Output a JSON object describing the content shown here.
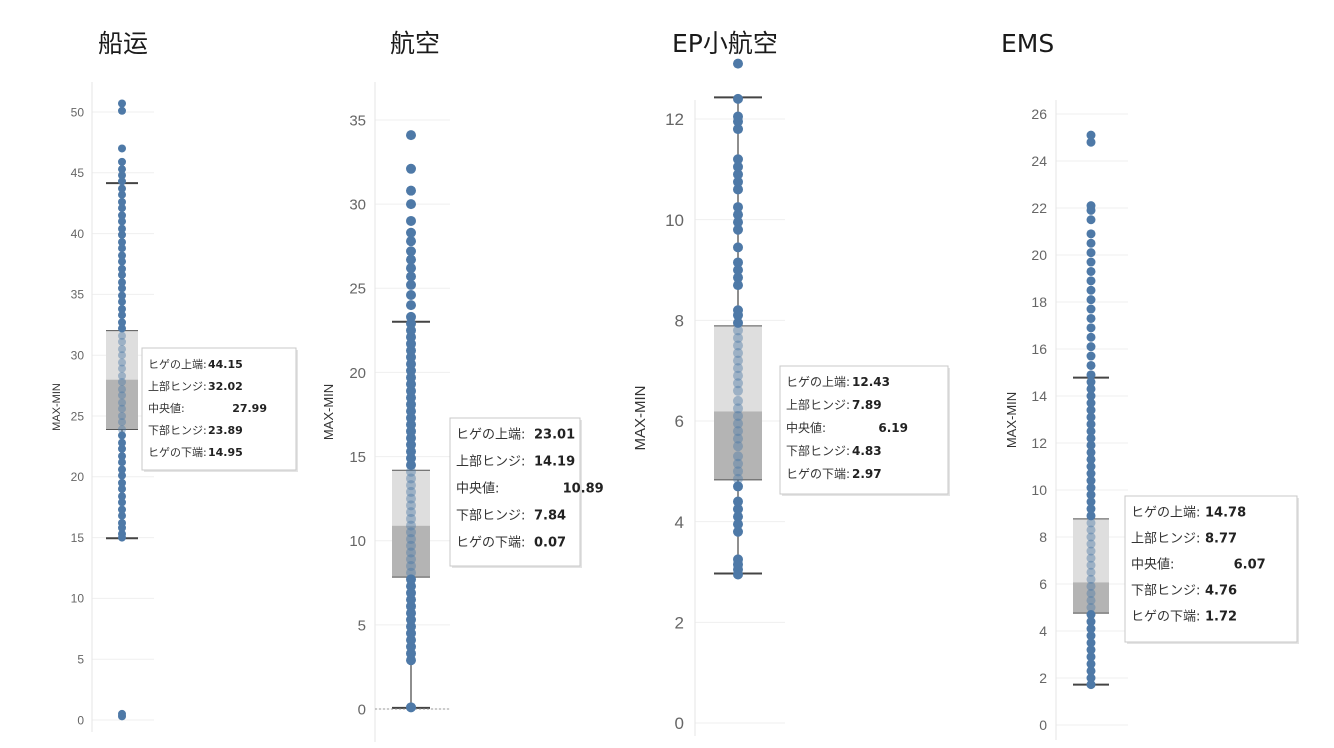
{
  "chart_data": [
    {
      "type": "boxplot",
      "title": "船运",
      "ylabel": "MAX-MIN",
      "ylim": [
        0,
        51
      ],
      "yticks": [
        0,
        5,
        10,
        15,
        20,
        25,
        30,
        35,
        40,
        45,
        50
      ],
      "whisker_upper": 44.15,
      "upper_hinge": 32.02,
      "median": 27.99,
      "lower_hinge": 23.89,
      "whisker_lower": 14.95,
      "points": [
        0.3,
        0.5,
        15.0,
        15.3,
        15.8,
        16.2,
        16.8,
        17.3,
        17.9,
        18.4,
        19.0,
        19.5,
        20.1,
        20.6,
        21.2,
        21.7,
        22.3,
        22.8,
        23.4,
        23.9,
        24.5,
        25.0,
        25.6,
        26.1,
        26.7,
        27.2,
        27.8,
        28.3,
        28.9,
        29.4,
        30.0,
        30.5,
        31.1,
        31.6,
        32.2,
        32.7,
        33.3,
        33.8,
        34.4,
        34.9,
        35.5,
        36.0,
        36.6,
        37.1,
        37.7,
        38.2,
        38.8,
        39.3,
        39.9,
        40.4,
        41.0,
        41.5,
        42.1,
        42.6,
        43.2,
        43.7,
        44.3,
        44.8,
        45.3,
        45.9,
        47.0,
        50.1,
        50.7
      ],
      "tooltip": {
        "labels": [
          "ヒゲの上端:",
          "上部ヒンジ:",
          "中央値:",
          "下部ヒンジ:",
          "ヒゲの下端:"
        ],
        "values": [
          "44.15",
          "32.02",
          "27.99",
          "23.89",
          "14.95"
        ]
      }
    },
    {
      "type": "boxplot",
      "title": "航空",
      "ylabel": "MAX-MIN",
      "ylim": [
        0,
        35
      ],
      "yticks": [
        0,
        5,
        10,
        15,
        20,
        25,
        30,
        35
      ],
      "whisker_upper": 23.01,
      "upper_hinge": 14.19,
      "median": 10.89,
      "lower_hinge": 7.84,
      "whisker_lower": 0.07,
      "points": [
        0.1,
        2.9,
        3.3,
        3.7,
        4.1,
        4.5,
        4.9,
        5.3,
        5.7,
        6.1,
        6.5,
        6.9,
        7.3,
        7.7,
        8.1,
        8.5,
        8.9,
        9.3,
        9.7,
        10.1,
        10.5,
        10.9,
        11.3,
        11.7,
        12.1,
        12.5,
        12.9,
        13.3,
        13.7,
        14.1,
        14.5,
        14.9,
        15.3,
        15.7,
        16.1,
        16.5,
        16.9,
        17.3,
        17.7,
        18.1,
        18.5,
        18.9,
        19.3,
        19.7,
        20.1,
        20.5,
        20.9,
        21.3,
        21.7,
        22.1,
        22.5,
        22.9,
        23.3,
        24.0,
        24.6,
        25.2,
        25.7,
        26.2,
        26.7,
        27.2,
        27.8,
        28.3,
        29.0,
        30.0,
        30.8,
        32.1,
        34.1
      ],
      "tooltip": {
        "labels": [
          "ヒゲの上端:",
          "上部ヒンジ:",
          "中央値:",
          "下部ヒンジ:",
          "ヒゲの下端:"
        ],
        "values": [
          "23.01",
          "14.19",
          "10.89",
          "7.84",
          "0.07"
        ]
      }
    },
    {
      "type": "boxplot",
      "title": "EP小航空",
      "ylabel": "MAX-MIN",
      "ylim": [
        0,
        13.3
      ],
      "yticks": [
        0,
        2,
        4,
        6,
        8,
        10,
        12
      ],
      "whisker_upper": 12.43,
      "upper_hinge": 7.89,
      "median": 6.19,
      "lower_hinge": 4.83,
      "whisker_lower": 2.97,
      "points": [
        2.95,
        3.05,
        3.15,
        3.25,
        3.8,
        3.95,
        4.1,
        4.25,
        4.4,
        4.7,
        4.85,
        5.0,
        5.15,
        5.3,
        5.5,
        5.65,
        5.8,
        5.95,
        6.1,
        6.25,
        6.4,
        6.6,
        6.75,
        6.9,
        7.05,
        7.2,
        7.35,
        7.5,
        7.65,
        7.8,
        7.95,
        8.1,
        8.2,
        8.7,
        8.85,
        9.0,
        9.15,
        9.45,
        9.8,
        9.95,
        10.1,
        10.25,
        10.6,
        10.75,
        10.9,
        11.05,
        11.2,
        11.8,
        11.95,
        12.05,
        12.4,
        13.1
      ],
      "tooltip": {
        "labels": [
          "ヒゲの上端:",
          "上部ヒンジ:",
          "中央値:",
          "下部ヒンジ:",
          "ヒゲの下端:"
        ],
        "values": [
          "12.43",
          "7.89",
          "6.19",
          "4.83",
          "2.97"
        ]
      }
    },
    {
      "type": "boxplot",
      "title": "EMS",
      "ylabel": "MAX-MIN",
      "ylim": [
        0,
        26
      ],
      "yticks": [
        0,
        2,
        4,
        6,
        8,
        10,
        12,
        14,
        16,
        18,
        20,
        22,
        24,
        26
      ],
      "whisker_upper": 14.78,
      "upper_hinge": 8.77,
      "median": 6.07,
      "lower_hinge": 4.76,
      "whisker_lower": 1.72,
      "points": [
        1.72,
        2.0,
        2.3,
        2.6,
        2.9,
        3.2,
        3.5,
        3.8,
        4.1,
        4.4,
        4.7,
        5.0,
        5.3,
        5.6,
        5.9,
        6.2,
        6.5,
        6.8,
        7.1,
        7.4,
        7.7,
        8.0,
        8.3,
        8.6,
        8.9,
        9.2,
        9.5,
        9.8,
        10.1,
        10.4,
        10.7,
        11.0,
        11.3,
        11.6,
        11.9,
        12.2,
        12.5,
        12.8,
        13.1,
        13.4,
        13.7,
        14.0,
        14.3,
        14.6,
        14.9,
        15.3,
        15.7,
        16.1,
        16.5,
        16.9,
        17.3,
        17.7,
        18.1,
        18.5,
        18.9,
        19.3,
        19.7,
        20.1,
        20.5,
        20.9,
        21.5,
        21.9,
        22.1,
        24.8,
        25.1
      ],
      "tooltip": {
        "labels": [
          "ヒゲの上端:",
          "上部ヒンジ:",
          "中央値:",
          "下部ヒンジ:",
          "ヒゲの下端:"
        ],
        "values": [
          "14.78",
          "8.77",
          "6.07",
          "4.76",
          "1.72"
        ]
      }
    }
  ],
  "colors": {
    "point": "#4e79a7",
    "box_upper": "#dedede",
    "box_lower": "#b4b4b4",
    "whisker": "#444444",
    "grid": "#efefef",
    "tooltip_border": "#c8c8c8"
  }
}
